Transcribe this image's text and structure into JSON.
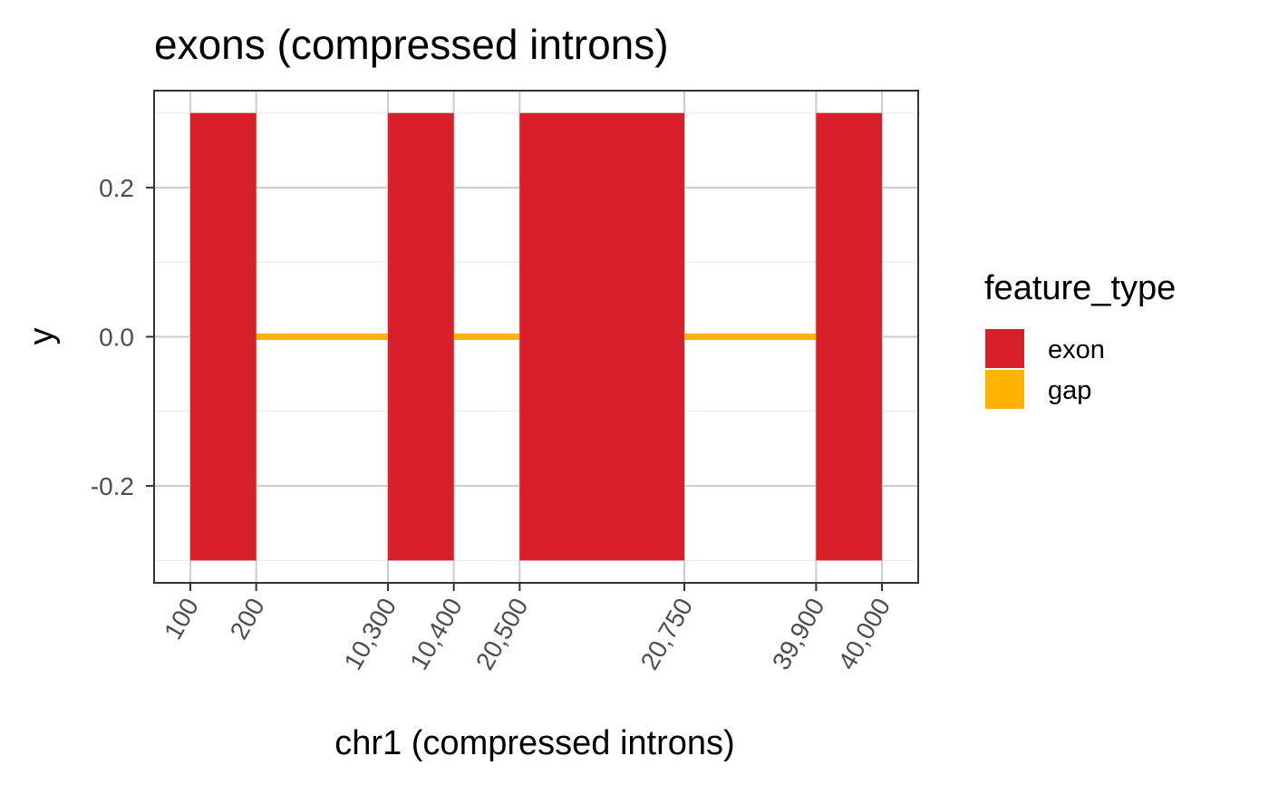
{
  "chart_data": {
    "type": "bar",
    "title": "exons (compressed introns)",
    "xlabel": "chr1 (compressed introns)",
    "ylabel": "y",
    "x_ticks": [
      "100",
      "200",
      "10,300",
      "10,400",
      "20,500",
      "20,750",
      "39,900",
      "40,000"
    ],
    "y_ticks": [
      0.2,
      0.0,
      -0.2
    ],
    "y_tick_labels": [
      "0.2",
      "0.0",
      "-0.2"
    ],
    "ylim": [
      -0.33,
      0.33
    ],
    "grid": true,
    "legend": {
      "title": "feature_type",
      "placement": "right",
      "entries": [
        {
          "label": "exon",
          "color": "#d7202a"
        },
        {
          "label": "gap",
          "color": "#ffb300"
        }
      ]
    },
    "exons": [
      {
        "start": 0,
        "end": 1,
        "ymin": -0.3,
        "ymax": 0.3
      },
      {
        "start": 3,
        "end": 4,
        "ymin": -0.3,
        "ymax": 0.3
      },
      {
        "start": 5,
        "end": 7.5,
        "ymin": -0.3,
        "ymax": 0.3
      },
      {
        "start": 9.5,
        "end": 10.5,
        "ymin": -0.3,
        "ymax": 0.3
      }
    ],
    "gaps": [
      {
        "start": 1,
        "end": 3,
        "y": 0
      },
      {
        "start": 4,
        "end": 5,
        "y": 0
      },
      {
        "start": 7.5,
        "end": 9.5,
        "y": 0
      }
    ],
    "compressed_tick_positions": [
      0,
      1,
      3,
      4,
      5,
      7.5,
      9.5,
      10.5
    ],
    "colors": {
      "exon": "#d7202a",
      "gap": "#ffb300",
      "grid_major": "#cccccc",
      "grid_minor": "#ebebeb",
      "panel_border": "#333333"
    }
  }
}
